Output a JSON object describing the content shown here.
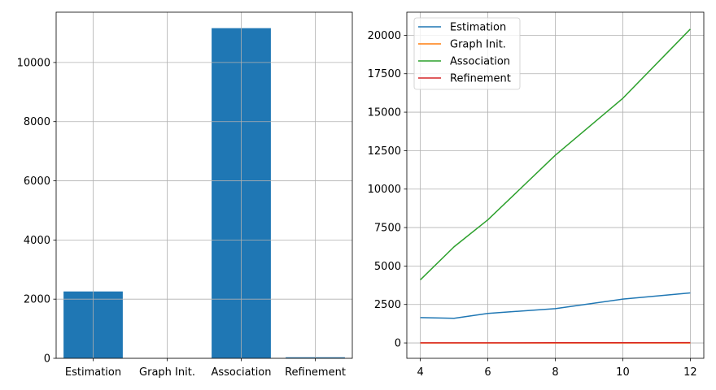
{
  "chart_data": [
    {
      "type": "bar",
      "categories": [
        "Estimation",
        "Graph Init.",
        "Association",
        "Refinement"
      ],
      "values": [
        2260,
        0,
        11160,
        35
      ],
      "ylim": [
        0,
        11700
      ],
      "yticks": [
        0,
        2000,
        4000,
        6000,
        8000,
        10000
      ],
      "grid": true,
      "legend": "none",
      "colors": {
        "bar": "#1f77b4"
      }
    },
    {
      "type": "line",
      "x": [
        4,
        5,
        6,
        8,
        10,
        12
      ],
      "xticks": [
        4,
        6,
        8,
        10,
        12
      ],
      "xlim": [
        3.6,
        12.4
      ],
      "ylim": [
        -1000,
        21500
      ],
      "yticks": [
        0,
        2500,
        5000,
        7500,
        10000,
        12500,
        15000,
        17500,
        20000
      ],
      "grid": true,
      "legend": "upper-left",
      "series": [
        {
          "name": "Estimation",
          "color": "#1f77b4",
          "values": [
            1650,
            1600,
            1920,
            2230,
            2850,
            3250
          ]
        },
        {
          "name": "Graph Init.",
          "color": "#ff7f0e",
          "values": [
            0,
            0,
            0,
            0,
            0,
            0
          ]
        },
        {
          "name": "Association",
          "color": "#2ca02c",
          "values": [
            4100,
            6250,
            8000,
            12200,
            15900,
            20400
          ]
        },
        {
          "name": "Refinement",
          "color": "#d62728",
          "values": [
            10,
            10,
            12,
            14,
            18,
            22
          ]
        }
      ]
    }
  ]
}
